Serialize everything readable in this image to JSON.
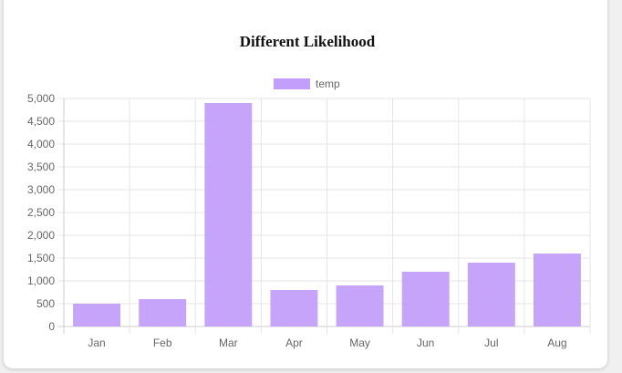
{
  "chart_data": {
    "type": "bar",
    "title": "Different Likelihood",
    "categories": [
      "Jan",
      "Feb",
      "Mar",
      "Apr",
      "May",
      "Jun",
      "Jul",
      "Aug"
    ],
    "series": [
      {
        "name": "temp",
        "values": [
          500,
          600,
          4900,
          800,
          900,
          1200,
          1400,
          1600
        ],
        "color": "#c29ffa"
      }
    ],
    "ylim": [
      0,
      5000
    ],
    "y_ticks": [
      "0",
      "500",
      "1,000",
      "1,500",
      "2,000",
      "2,500",
      "3,000",
      "3,500",
      "4,000",
      "4,500",
      "5,000"
    ],
    "grid": true,
    "legend": "top-center"
  }
}
